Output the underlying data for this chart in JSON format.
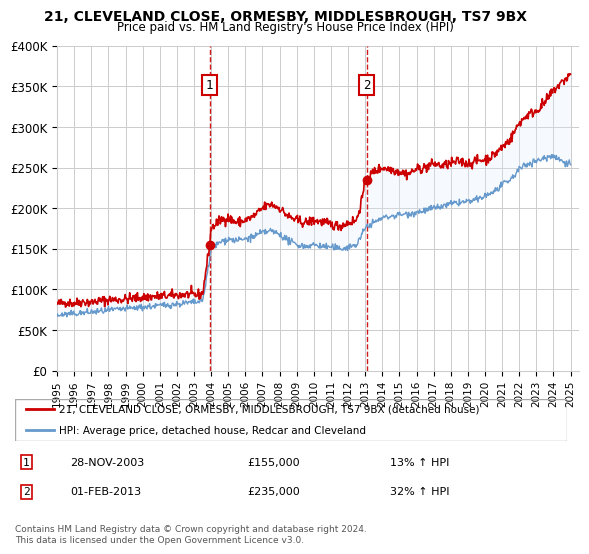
{
  "title": "21, CLEVELAND CLOSE, ORMESBY, MIDDLESBROUGH, TS7 9BX",
  "subtitle": "Price paid vs. HM Land Registry's House Price Index (HPI)",
  "xlabel": "",
  "ylabel": "",
  "ylim": [
    0,
    400000
  ],
  "yticks": [
    0,
    50000,
    100000,
    150000,
    200000,
    250000,
    300000,
    350000,
    400000
  ],
  "ytick_labels": [
    "£0",
    "£50K",
    "£100K",
    "£150K",
    "£200K",
    "£250K",
    "£300K",
    "£350K",
    "£400K"
  ],
  "xmin": 1995.0,
  "xmax": 2025.5,
  "xticks": [
    1995,
    1996,
    1997,
    1998,
    1999,
    2000,
    2001,
    2002,
    2003,
    2004,
    2005,
    2006,
    2007,
    2008,
    2009,
    2010,
    2011,
    2012,
    2013,
    2014,
    2015,
    2016,
    2017,
    2018,
    2019,
    2020,
    2021,
    2022,
    2023,
    2024,
    2025
  ],
  "sale1_x": 2003.91,
  "sale1_y": 155000,
  "sale1_label": "1",
  "sale2_x": 2013.08,
  "sale2_y": 235000,
  "sale2_label": "2",
  "line1_color": "#cc0000",
  "line2_color": "#6699cc",
  "shade_color": "#ddeeff",
  "vline_color": "#cc0000",
  "background_color": "#ffffff",
  "grid_color": "#cccccc",
  "legend_line1": "21, CLEVELAND CLOSE, ORMESBY, MIDDLESBROUGH, TS7 9BX (detached house)",
  "legend_line2": "HPI: Average price, detached house, Redcar and Cleveland",
  "ann1_date": "28-NOV-2003",
  "ann1_price": "£155,000",
  "ann1_hpi": "13% ↑ HPI",
  "ann2_date": "01-FEB-2013",
  "ann2_price": "£235,000",
  "ann2_hpi": "32% ↑ HPI",
  "footer": "Contains HM Land Registry data © Crown copyright and database right 2024.\nThis data is licensed under the Open Government Licence v3.0.",
  "red_line_data": [
    [
      1995.0,
      82000
    ],
    [
      1995.5,
      84000
    ],
    [
      1996.0,
      83000
    ],
    [
      1996.5,
      85000
    ],
    [
      1997.0,
      84000
    ],
    [
      1997.5,
      86000
    ],
    [
      1998.0,
      87000
    ],
    [
      1998.5,
      87500
    ],
    [
      1999.0,
      88000
    ],
    [
      1999.5,
      89000
    ],
    [
      2000.0,
      90000
    ],
    [
      2000.5,
      91000
    ],
    [
      2001.0,
      91500
    ],
    [
      2001.5,
      92000
    ],
    [
      2002.0,
      93000
    ],
    [
      2002.5,
      94000
    ],
    [
      2003.0,
      93000
    ],
    [
      2003.5,
      94000
    ],
    [
      2003.91,
      155000
    ],
    [
      2004.0,
      175000
    ],
    [
      2004.5,
      185000
    ],
    [
      2005.0,
      188000
    ],
    [
      2005.5,
      182000
    ],
    [
      2006.0,
      185000
    ],
    [
      2006.5,
      190000
    ],
    [
      2007.0,
      200000
    ],
    [
      2007.5,
      205000
    ],
    [
      2008.0,
      200000
    ],
    [
      2008.5,
      190000
    ],
    [
      2009.0,
      185000
    ],
    [
      2009.5,
      182000
    ],
    [
      2010.0,
      185000
    ],
    [
      2010.5,
      183000
    ],
    [
      2011.0,
      180000
    ],
    [
      2011.5,
      178000
    ],
    [
      2012.0,
      182000
    ],
    [
      2012.5,
      185000
    ],
    [
      2013.08,
      235000
    ],
    [
      2013.5,
      245000
    ],
    [
      2014.0,
      250000
    ],
    [
      2014.5,
      248000
    ],
    [
      2015.0,
      245000
    ],
    [
      2015.5,
      242000
    ],
    [
      2016.0,
      248000
    ],
    [
      2016.5,
      250000
    ],
    [
      2017.0,
      255000
    ],
    [
      2017.5,
      252000
    ],
    [
      2018.0,
      255000
    ],
    [
      2018.5,
      258000
    ],
    [
      2019.0,
      255000
    ],
    [
      2019.5,
      258000
    ],
    [
      2020.0,
      260000
    ],
    [
      2020.5,
      265000
    ],
    [
      2021.0,
      275000
    ],
    [
      2021.5,
      285000
    ],
    [
      2022.0,
      305000
    ],
    [
      2022.5,
      315000
    ],
    [
      2023.0,
      320000
    ],
    [
      2023.5,
      330000
    ],
    [
      2024.0,
      345000
    ],
    [
      2024.5,
      355000
    ],
    [
      2025.0,
      365000
    ]
  ],
  "blue_line_data": [
    [
      1995.0,
      68000
    ],
    [
      1995.5,
      69000
    ],
    [
      1996.0,
      70000
    ],
    [
      1996.5,
      71000
    ],
    [
      1997.0,
      72000
    ],
    [
      1997.5,
      73000
    ],
    [
      1998.0,
      74000
    ],
    [
      1998.5,
      75000
    ],
    [
      1999.0,
      76000
    ],
    [
      1999.5,
      77000
    ],
    [
      2000.0,
      78000
    ],
    [
      2000.5,
      79000
    ],
    [
      2001.0,
      80000
    ],
    [
      2001.5,
      81000
    ],
    [
      2002.0,
      82000
    ],
    [
      2002.5,
      83000
    ],
    [
      2003.0,
      84000
    ],
    [
      2003.5,
      85000
    ],
    [
      2003.91,
      137000
    ],
    [
      2004.0,
      150000
    ],
    [
      2004.5,
      158000
    ],
    [
      2005.0,
      162000
    ],
    [
      2005.5,
      160000
    ],
    [
      2006.0,
      162000
    ],
    [
      2006.5,
      165000
    ],
    [
      2007.0,
      170000
    ],
    [
      2007.5,
      172000
    ],
    [
      2008.0,
      168000
    ],
    [
      2008.5,
      160000
    ],
    [
      2009.0,
      155000
    ],
    [
      2009.5,
      153000
    ],
    [
      2010.0,
      155000
    ],
    [
      2010.5,
      153000
    ],
    [
      2011.0,
      152000
    ],
    [
      2011.5,
      150000
    ],
    [
      2012.0,
      152000
    ],
    [
      2012.5,
      155000
    ],
    [
      2013.08,
      178000
    ],
    [
      2013.5,
      182000
    ],
    [
      2014.0,
      188000
    ],
    [
      2014.5,
      190000
    ],
    [
      2015.0,
      192000
    ],
    [
      2015.5,
      193000
    ],
    [
      2016.0,
      195000
    ],
    [
      2016.5,
      197000
    ],
    [
      2017.0,
      200000
    ],
    [
      2017.5,
      202000
    ],
    [
      2018.0,
      205000
    ],
    [
      2018.5,
      207000
    ],
    [
      2019.0,
      208000
    ],
    [
      2019.5,
      210000
    ],
    [
      2020.0,
      215000
    ],
    [
      2020.5,
      220000
    ],
    [
      2021.0,
      228000
    ],
    [
      2021.5,
      235000
    ],
    [
      2022.0,
      248000
    ],
    [
      2022.5,
      255000
    ],
    [
      2023.0,
      258000
    ],
    [
      2023.5,
      262000
    ],
    [
      2024.0,
      265000
    ],
    [
      2024.5,
      258000
    ],
    [
      2025.0,
      255000
    ]
  ]
}
